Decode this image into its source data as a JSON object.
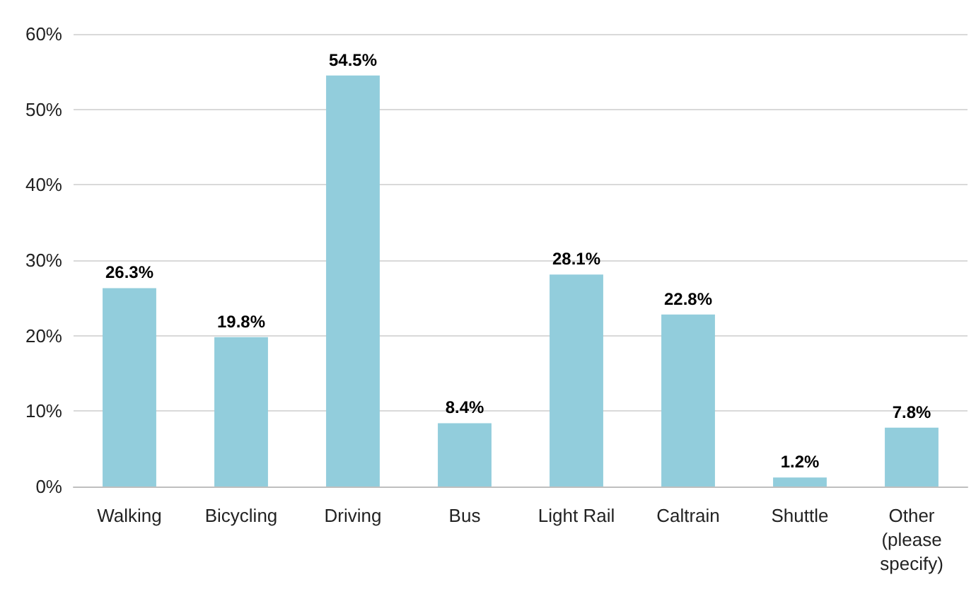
{
  "chart_data": {
    "type": "bar",
    "categories": [
      "Walking",
      "Bicycling",
      "Driving",
      "Bus",
      "Light Rail",
      "Caltrain",
      "Shuttle",
      "Other\n(please\nspecify)"
    ],
    "values": [
      26.3,
      19.8,
      54.5,
      8.4,
      28.1,
      22.8,
      1.2,
      7.8
    ],
    "value_labels": [
      "26.3%",
      "19.8%",
      "54.5%",
      "8.4%",
      "28.1%",
      "22.8%",
      "1.2%",
      "7.8%"
    ],
    "color": "#92cddc",
    "ylim": [
      0,
      60
    ],
    "yticks": [
      {
        "value": 0,
        "label": "0%"
      },
      {
        "value": 10,
        "label": "10%"
      },
      {
        "value": 20,
        "label": "20%"
      },
      {
        "value": 30,
        "label": "30%"
      },
      {
        "value": 40,
        "label": "40%"
      },
      {
        "value": 50,
        "label": "50%"
      },
      {
        "value": 60,
        "label": "60%"
      }
    ],
    "grid": "y"
  }
}
